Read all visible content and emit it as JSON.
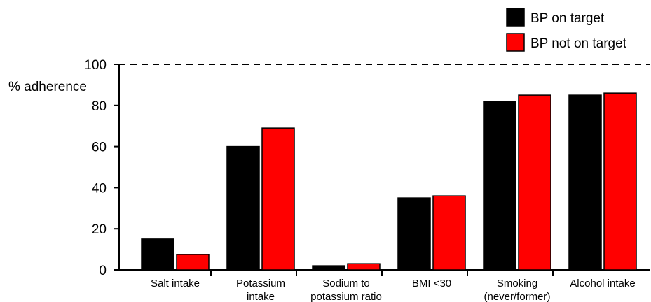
{
  "chart_data": {
    "type": "bar",
    "ylabel": "% adherence",
    "ylim": [
      0,
      100
    ],
    "yticks": [
      0,
      20,
      40,
      60,
      80,
      100
    ],
    "reference_line": 100,
    "categories": [
      [
        "Salt intake"
      ],
      [
        "Potassium",
        "intake"
      ],
      [
        "Sodium to",
        "potassium ratio"
      ],
      [
        "BMI <30"
      ],
      [
        "Smoking",
        "(never/former)"
      ],
      [
        "Alcohol intake"
      ]
    ],
    "series": [
      {
        "name": "BP on target",
        "color": "#000000",
        "values": [
          15,
          60,
          2,
          35,
          82,
          85
        ]
      },
      {
        "name": "BP not on target",
        "color": "#ff0000",
        "values": [
          7.5,
          69,
          3,
          36,
          85,
          86
        ]
      }
    ],
    "legend_position": "top-right"
  }
}
